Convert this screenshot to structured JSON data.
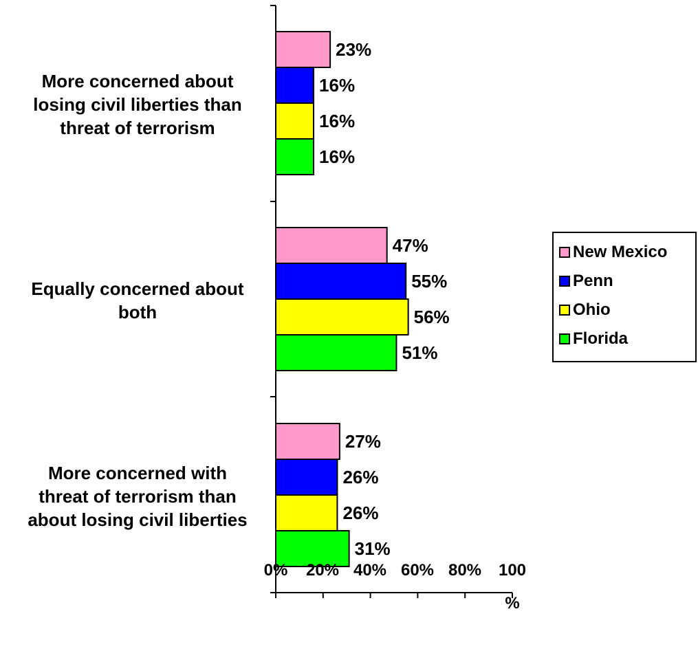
{
  "chart_data": {
    "type": "bar",
    "orientation": "horizontal",
    "categories": [
      [
        "More concerned about",
        "losing civil liberties than",
        "threat of terrorism"
      ],
      [
        "Equally concerned about",
        "both"
      ],
      [
        "More concerned with",
        "threat of terrorism than",
        "about losing civil liberties"
      ]
    ],
    "series": [
      {
        "name": "New Mexico",
        "color": "#ff99cc",
        "values": [
          23,
          47,
          27
        ],
        "labels": [
          "23%",
          "47%",
          "27%"
        ]
      },
      {
        "name": "Penn",
        "color": "#0000ff",
        "values": [
          16,
          55,
          26
        ],
        "labels": [
          "16%",
          "55%",
          "26%"
        ]
      },
      {
        "name": "Ohio",
        "color": "#ffff00",
        "values": [
          16,
          56,
          26
        ],
        "labels": [
          "16%",
          "56%",
          "26%"
        ]
      },
      {
        "name": "Florida",
        "color": "#00ff00",
        "values": [
          16,
          51,
          31
        ],
        "labels": [
          "16%",
          "51%",
          "31%"
        ]
      }
    ],
    "x_ticks": [
      "0%",
      "20%",
      "40%",
      "60%",
      "80%",
      "100",
      "%"
    ],
    "xlim": [
      0,
      100
    ],
    "grid": false,
    "legend_position": "right"
  }
}
